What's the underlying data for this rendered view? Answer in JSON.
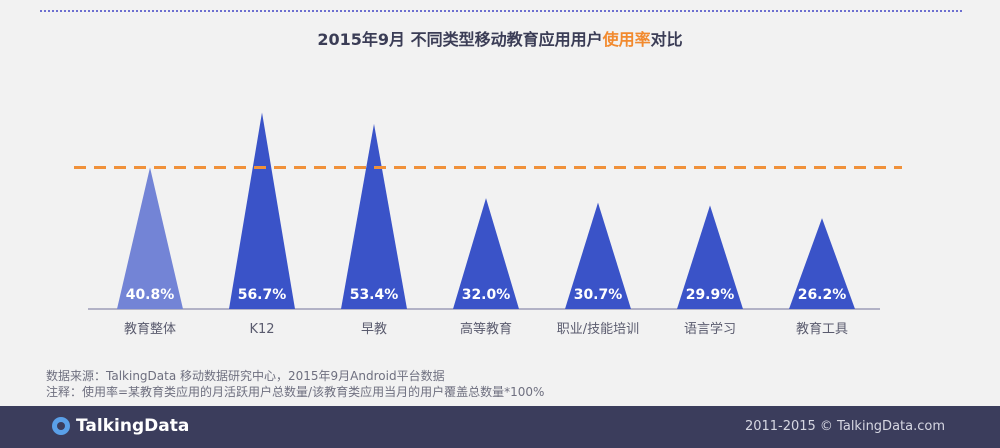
{
  "title": {
    "prefix": "2015年9月  不同类型移动教育应用用户",
    "highlight": "使用率",
    "suffix": "对比"
  },
  "chart_data": {
    "type": "bar",
    "categories": [
      "教育整体",
      "K12",
      "早教",
      "高等教育",
      "职业/技能培训",
      "语言学习",
      "教育工具"
    ],
    "values": [
      40.8,
      56.7,
      53.4,
      32.0,
      30.7,
      29.9,
      26.2
    ],
    "value_labels": [
      "40.8%",
      "56.7%",
      "53.4%",
      "32.0%",
      "30.7%",
      "29.9%",
      "26.2%"
    ],
    "reference_line": 40.8,
    "ylim": [
      0,
      60
    ],
    "grid": false,
    "colors": {
      "overall": "#7384d6",
      "category": "#3a53c8",
      "reference_line": "#f0913a"
    }
  },
  "notes": {
    "source": "数据来源：TalkingData 移动数据研究中心，2015年9月Android平台数据",
    "note": "注释：使用率=某教育类应用的月活跃用户总数量/该教育类应用当月的用户覆盖总数量*100%"
  },
  "footer": {
    "brand": "TalkingData",
    "copyright": "2011-2015 © TalkingData.com"
  }
}
